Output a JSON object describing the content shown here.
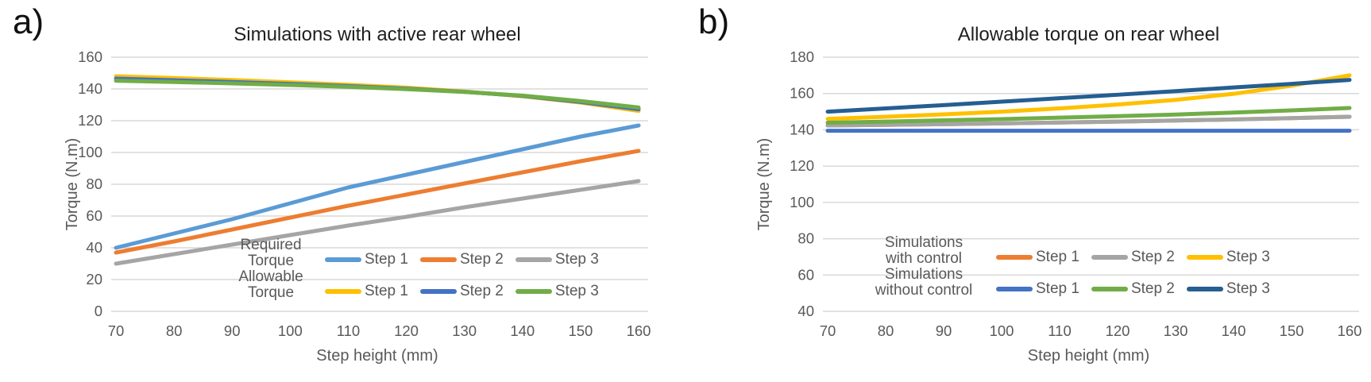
{
  "figure": {
    "description": "Two-panel line chart figure comparing rear-wheel torques vs step height",
    "background": "#FFFFFF"
  },
  "colors": {
    "grid": "#D9D9D9",
    "axis_text": "#595959",
    "title_text": "#1F1F1F",
    "light_blue": "#5B9BD5",
    "orange": "#ED7D31",
    "gray": "#A5A5A5",
    "yellow": "#FFC000",
    "blue": "#4472C4",
    "green": "#70AD47",
    "dark_blue": "#255E91"
  },
  "chart_data": [
    {
      "type": "line",
      "panel_label": "a)",
      "title": "Simulations with active rear wheel",
      "xlabel": "Step height (mm)",
      "ylabel": "Torque (N.m)",
      "x": [
        70,
        80,
        90,
        100,
        110,
        120,
        130,
        140,
        150,
        160
      ],
      "xlim": [
        70,
        160
      ],
      "ylim": [
        0,
        160
      ],
      "xticks": [
        70,
        80,
        90,
        100,
        110,
        120,
        130,
        140,
        150,
        160
      ],
      "yticks": [
        0,
        20,
        40,
        60,
        80,
        100,
        120,
        140,
        160
      ],
      "grid": "horizontal",
      "legend_position": "inside-bottom-center",
      "legend_groups": [
        {
          "name_lines": [
            "Required",
            "Torque"
          ],
          "entries": [
            {
              "label": "Step 1",
              "color": "#5B9BD5"
            },
            {
              "label": "Step 2",
              "color": "#ED7D31"
            },
            {
              "label": "Step 3",
              "color": "#A5A5A5"
            }
          ]
        },
        {
          "name_lines": [
            "Allowable",
            "Torque"
          ],
          "entries": [
            {
              "label": "Step 1",
              "color": "#FFC000"
            },
            {
              "label": "Step 2",
              "color": "#4472C4"
            },
            {
              "label": "Step 3",
              "color": "#70AD47"
            }
          ]
        }
      ],
      "series": [
        {
          "name": "Required Torque Step 1",
          "color": "#5B9BD5",
          "values": [
            40,
            49,
            58,
            68,
            78,
            86,
            94,
            102,
            110,
            117
          ]
        },
        {
          "name": "Required Torque Step 2",
          "color": "#ED7D31",
          "values": [
            37,
            44,
            51.5,
            59,
            66.5,
            73.5,
            80.5,
            87.5,
            94.5,
            101
          ]
        },
        {
          "name": "Required Torque Step 3",
          "color": "#A5A5A5",
          "values": [
            30,
            36,
            42,
            48,
            54,
            59.5,
            65.5,
            71,
            76.5,
            82
          ]
        },
        {
          "name": "Allowable Torque Step 1",
          "color": "#FFC000",
          "values": [
            148,
            146.9,
            145.6,
            144.2,
            142.6,
            140.8,
            138.4,
            135.4,
            131.4,
            126.2
          ]
        },
        {
          "name": "Allowable Torque Step 2",
          "color": "#4472C4",
          "values": [
            146.5,
            145.5,
            144.4,
            143.2,
            141.8,
            140.2,
            138.2,
            135.6,
            131.8,
            127.2
          ]
        },
        {
          "name": "Allowable Torque Step 3",
          "color": "#70AD47",
          "values": [
            145.2,
            144.4,
            143.5,
            142.5,
            141.3,
            139.9,
            138.1,
            135.8,
            132.4,
            128.3
          ]
        }
      ]
    },
    {
      "type": "line",
      "panel_label": "b)",
      "title": "Allowable torque on rear wheel",
      "xlabel": "Step height (mm)",
      "ylabel": "Torque (N.m)",
      "x": [
        70,
        80,
        90,
        100,
        110,
        120,
        130,
        140,
        150,
        160
      ],
      "xlim": [
        70,
        160
      ],
      "ylim": [
        40,
        180
      ],
      "xticks": [
        70,
        80,
        90,
        100,
        110,
        120,
        130,
        140,
        150,
        160
      ],
      "yticks": [
        40,
        60,
        80,
        100,
        120,
        140,
        160,
        180
      ],
      "grid": "horizontal",
      "legend_position": "inside-bottom-center",
      "legend_groups": [
        {
          "name_lines": [
            "Simulations",
            "with control"
          ],
          "entries": [
            {
              "label": "Step 1",
              "color": "#ED7D31"
            },
            {
              "label": "Step 2",
              "color": "#A5A5A5"
            },
            {
              "label": "Step 3",
              "color": "#FFC000"
            }
          ]
        },
        {
          "name_lines": [
            "Simulations",
            "without control"
          ],
          "entries": [
            {
              "label": "Step 1",
              "color": "#4472C4"
            },
            {
              "label": "Step 2",
              "color": "#70AD47"
            },
            {
              "label": "Step 3",
              "color": "#255E91"
            }
          ]
        }
      ],
      "series": [
        {
          "name": "Simulations with control Step 1",
          "color": "#ED7D31",
          "note": "coincides with Step 2 line (hidden beneath it)",
          "values": [
            142.4,
            142.7,
            143.1,
            143.5,
            144,
            144.5,
            145.1,
            145.7,
            146.4,
            147.2
          ]
        },
        {
          "name": "Simulations with control Step 2",
          "color": "#A5A5A5",
          "values": [
            142.4,
            142.7,
            143.1,
            143.5,
            144,
            144.5,
            145.1,
            145.7,
            146.4,
            147.2
          ]
        },
        {
          "name": "Simulations with control Step 3",
          "color": "#FFC000",
          "values": [
            146,
            147.2,
            148.5,
            150,
            151.8,
            153.9,
            156.5,
            159.8,
            164.3,
            170
          ]
        },
        {
          "name": "Simulations without control Step 1",
          "color": "#4472C4",
          "values": [
            139.5,
            139.5,
            139.5,
            139.5,
            139.5,
            139.5,
            139.5,
            139.5,
            139.5,
            139.5
          ]
        },
        {
          "name": "Simulations without control Step 2",
          "color": "#70AD47",
          "values": [
            143.9,
            144.5,
            145.2,
            145.9,
            146.7,
            147.5,
            148.4,
            149.5,
            150.7,
            152
          ]
        },
        {
          "name": "Simulations without control Step 3",
          "color": "#255E91",
          "values": [
            150,
            151.8,
            153.6,
            155.5,
            157.4,
            159.3,
            161.3,
            163.3,
            165.3,
            167.5
          ]
        }
      ]
    }
  ]
}
